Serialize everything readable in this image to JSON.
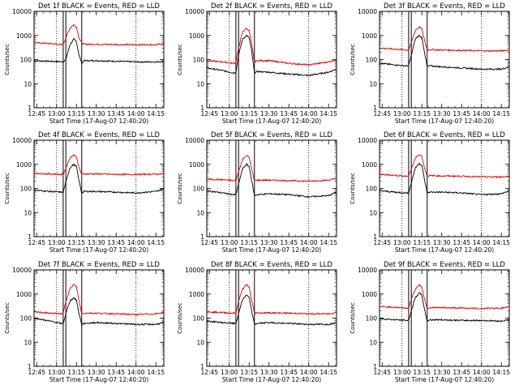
{
  "time_labels": [
    "12:45",
    "13:00",
    "13:15",
    "13:30",
    "13:45",
    "14:00",
    "14:15"
  ],
  "time_values_min": [
    0,
    15,
    30,
    45,
    60,
    75,
    90
  ],
  "x_range_min": [
    -2,
    96
  ],
  "ylabel": "Counts/sec",
  "xlabel": "Start Time (17-Aug-07 12:40:20)",
  "y_ticks": [
    "1",
    "10",
    "100",
    "1000",
    "10000"
  ],
  "y_tick_values": [
    1,
    10,
    100,
    1000,
    10000
  ],
  "ylim": [
    1,
    10000
  ],
  "y_scale": "log",
  "colors": {
    "events": "#000000",
    "lld": "#e00000",
    "axes": "#000000"
  },
  "chart_data": [
    {
      "type": "line",
      "title": "Det 1f BLACK = Events, RED = LLD",
      "vlines_solid": [
        20,
        22,
        34
      ],
      "vlines_dotted": [
        15,
        75
      ],
      "series": [
        {
          "name": "Events",
          "color": "#000000",
          "t": [
            -2,
            10,
            18,
            20,
            22,
            25,
            28,
            30,
            32,
            34,
            36,
            45,
            60,
            75,
            90,
            96
          ],
          "v": [
            90,
            85,
            82,
            80,
            100,
            400,
            700,
            550,
            150,
            70,
            90,
            90,
            85,
            80,
            80,
            85
          ]
        },
        {
          "name": "LLD",
          "color": "#e00000",
          "t": [
            -2,
            10,
            18,
            20,
            22,
            25,
            28,
            30,
            32,
            34,
            36,
            45,
            60,
            75,
            90,
            96
          ],
          "v": [
            500,
            460,
            420,
            420,
            800,
            2000,
            2800,
            2200,
            800,
            480,
            430,
            430,
            420,
            410,
            420,
            450
          ]
        }
      ]
    },
    {
      "type": "line",
      "title": "Det 2f BLACK = Events, RED = LLD",
      "vlines_solid": [
        20,
        22,
        34
      ],
      "vlines_dotted": [
        15,
        75
      ],
      "series": [
        {
          "name": "Events",
          "color": "#000000",
          "t": [
            -2,
            10,
            18,
            20,
            22,
            25,
            28,
            30,
            32,
            34,
            36,
            45,
            60,
            75,
            90,
            96
          ],
          "v": [
            45,
            35,
            28,
            30,
            150,
            700,
            1000,
            800,
            200,
            28,
            32,
            30,
            25,
            22,
            30,
            40
          ]
        },
        {
          "name": "LLD",
          "color": "#e00000",
          "t": [
            -2,
            10,
            18,
            20,
            22,
            25,
            28,
            30,
            32,
            34,
            36,
            45,
            60,
            75,
            90,
            96
          ],
          "v": [
            90,
            80,
            70,
            75,
            300,
            1400,
            2000,
            1600,
            400,
            80,
            90,
            90,
            70,
            60,
            80,
            100
          ]
        }
      ]
    },
    {
      "type": "line",
      "title": "Det 3f BLACK = Events, RED = LLD",
      "vlines_solid": [
        20,
        22,
        34
      ],
      "vlines_dotted": [
        15,
        75
      ],
      "series": [
        {
          "name": "Events",
          "color": "#000000",
          "t": [
            -2,
            10,
            18,
            20,
            22,
            25,
            28,
            30,
            32,
            34,
            36,
            45,
            60,
            75,
            90,
            96
          ],
          "v": [
            70,
            60,
            55,
            55,
            150,
            700,
            1000,
            800,
            200,
            50,
            55,
            50,
            45,
            40,
            40,
            50
          ]
        },
        {
          "name": "LLD",
          "color": "#e00000",
          "t": [
            -2,
            10,
            18,
            20,
            22,
            25,
            28,
            30,
            32,
            34,
            36,
            45,
            60,
            75,
            90,
            96
          ],
          "v": [
            300,
            270,
            250,
            250,
            500,
            1600,
            2300,
            1800,
            600,
            250,
            260,
            250,
            240,
            230,
            230,
            250
          ]
        }
      ]
    },
    {
      "type": "line",
      "title": "Det 4f BLACK = Events, RED = LLD",
      "vlines_solid": [
        20,
        22,
        34
      ],
      "vlines_dotted": [
        15,
        75
      ],
      "series": [
        {
          "name": "Events",
          "color": "#000000",
          "t": [
            -2,
            10,
            18,
            20,
            22,
            25,
            28,
            30,
            32,
            34,
            36,
            45,
            60,
            75,
            90,
            96
          ],
          "v": [
            85,
            75,
            70,
            70,
            180,
            700,
            1000,
            800,
            200,
            65,
            75,
            75,
            70,
            65,
            75,
            95
          ]
        },
        {
          "name": "LLD",
          "color": "#e00000",
          "t": [
            -2,
            10,
            18,
            20,
            22,
            25,
            28,
            30,
            32,
            34,
            36,
            45,
            60,
            75,
            90,
            96
          ],
          "v": [
            420,
            400,
            380,
            380,
            700,
            1800,
            2500,
            2000,
            700,
            380,
            400,
            400,
            380,
            380,
            390,
            400
          ]
        }
      ]
    },
    {
      "type": "line",
      "title": "Det 5f BLACK = Events, RED = LLD",
      "vlines_solid": [
        20,
        22,
        34
      ],
      "vlines_dotted": [
        15,
        75
      ],
      "series": [
        {
          "name": "Events",
          "color": "#000000",
          "t": [
            -2,
            10,
            18,
            20,
            22,
            25,
            28,
            30,
            32,
            34,
            36,
            45,
            60,
            75,
            90,
            96
          ],
          "v": [
            80,
            65,
            55,
            55,
            150,
            650,
            1000,
            800,
            200,
            50,
            55,
            60,
            55,
            45,
            50,
            70
          ]
        },
        {
          "name": "LLD",
          "color": "#e00000",
          "t": [
            -2,
            10,
            18,
            20,
            22,
            25,
            28,
            30,
            32,
            34,
            36,
            45,
            60,
            75,
            90,
            96
          ],
          "v": [
            240,
            230,
            210,
            210,
            500,
            1600,
            2400,
            1900,
            600,
            210,
            220,
            220,
            210,
            200,
            220,
            260
          ]
        }
      ]
    },
    {
      "type": "line",
      "title": "Det 6f BLACK = Events, RED = LLD",
      "vlines_solid": [
        20,
        22,
        34
      ],
      "vlines_dotted": [
        15,
        75
      ],
      "series": [
        {
          "name": "Events",
          "color": "#000000",
          "t": [
            -2,
            10,
            18,
            20,
            22,
            25,
            28,
            30,
            32,
            34,
            36,
            45,
            60,
            75,
            90,
            96
          ],
          "v": [
            80,
            70,
            65,
            65,
            170,
            700,
            1100,
            900,
            220,
            65,
            70,
            70,
            65,
            55,
            60,
            80
          ]
        },
        {
          "name": "LLD",
          "color": "#e00000",
          "t": [
            -2,
            10,
            18,
            20,
            22,
            25,
            28,
            30,
            32,
            34,
            36,
            45,
            60,
            75,
            90,
            96
          ],
          "v": [
            380,
            350,
            320,
            320,
            650,
            1800,
            2600,
            2100,
            700,
            320,
            340,
            330,
            320,
            300,
            300,
            320
          ]
        }
      ]
    },
    {
      "type": "line",
      "title": "Det 7f BLACK = Events, RED = LLD",
      "vlines_solid": [
        20,
        22,
        34
      ],
      "vlines_dotted": [
        15,
        75
      ],
      "series": [
        {
          "name": "Events",
          "color": "#000000",
          "t": [
            -2,
            10,
            18,
            20,
            22,
            25,
            28,
            30,
            32,
            34,
            36,
            45,
            60,
            75,
            90,
            96
          ],
          "v": [
            100,
            75,
            60,
            60,
            150,
            500,
            700,
            550,
            150,
            55,
            60,
            65,
            60,
            55,
            55,
            65
          ]
        },
        {
          "name": "LLD",
          "color": "#e00000",
          "t": [
            -2,
            10,
            18,
            20,
            22,
            25,
            28,
            30,
            32,
            34,
            36,
            45,
            60,
            75,
            90,
            96
          ],
          "v": [
            180,
            160,
            150,
            150,
            500,
            1600,
            2500,
            2000,
            500,
            150,
            160,
            160,
            150,
            140,
            150,
            170
          ]
        }
      ]
    },
    {
      "type": "line",
      "title": "Det 8f BLACK = Events, RED = LLD",
      "vlines_solid": [
        20,
        22,
        34
      ],
      "vlines_dotted": [
        15,
        75
      ],
      "series": [
        {
          "name": "Events",
          "color": "#000000",
          "t": [
            -2,
            10,
            18,
            20,
            22,
            25,
            28,
            30,
            32,
            34,
            36,
            45,
            60,
            75,
            90,
            96
          ],
          "v": [
            75,
            65,
            60,
            60,
            150,
            600,
            900,
            700,
            180,
            55,
            60,
            65,
            60,
            55,
            55,
            65
          ]
        },
        {
          "name": "LLD",
          "color": "#e00000",
          "t": [
            -2,
            10,
            18,
            20,
            22,
            25,
            28,
            30,
            32,
            34,
            36,
            45,
            60,
            75,
            90,
            96
          ],
          "v": [
            180,
            170,
            160,
            160,
            500,
            1600,
            2400,
            1900,
            500,
            160,
            165,
            165,
            160,
            150,
            150,
            170
          ]
        }
      ]
    },
    {
      "type": "line",
      "title": "Det 9f BLACK = Events, RED = LLD",
      "vlines_solid": [
        20,
        22,
        34
      ],
      "vlines_dotted": [
        15,
        75
      ],
      "series": [
        {
          "name": "Events",
          "color": "#000000",
          "t": [
            -2,
            10,
            18,
            20,
            22,
            25,
            28,
            30,
            32,
            34,
            36,
            45,
            60,
            75,
            90,
            96
          ],
          "v": [
            95,
            85,
            80,
            80,
            200,
            700,
            1100,
            900,
            220,
            75,
            85,
            85,
            80,
            80,
            75,
            85
          ]
        },
        {
          "name": "LLD",
          "color": "#e00000",
          "t": [
            -2,
            10,
            18,
            20,
            22,
            25,
            28,
            30,
            32,
            34,
            36,
            45,
            60,
            75,
            90,
            96
          ],
          "v": [
            300,
            280,
            260,
            260,
            600,
            1600,
            2400,
            1900,
            600,
            260,
            270,
            270,
            260,
            250,
            260,
            280
          ]
        }
      ]
    }
  ]
}
